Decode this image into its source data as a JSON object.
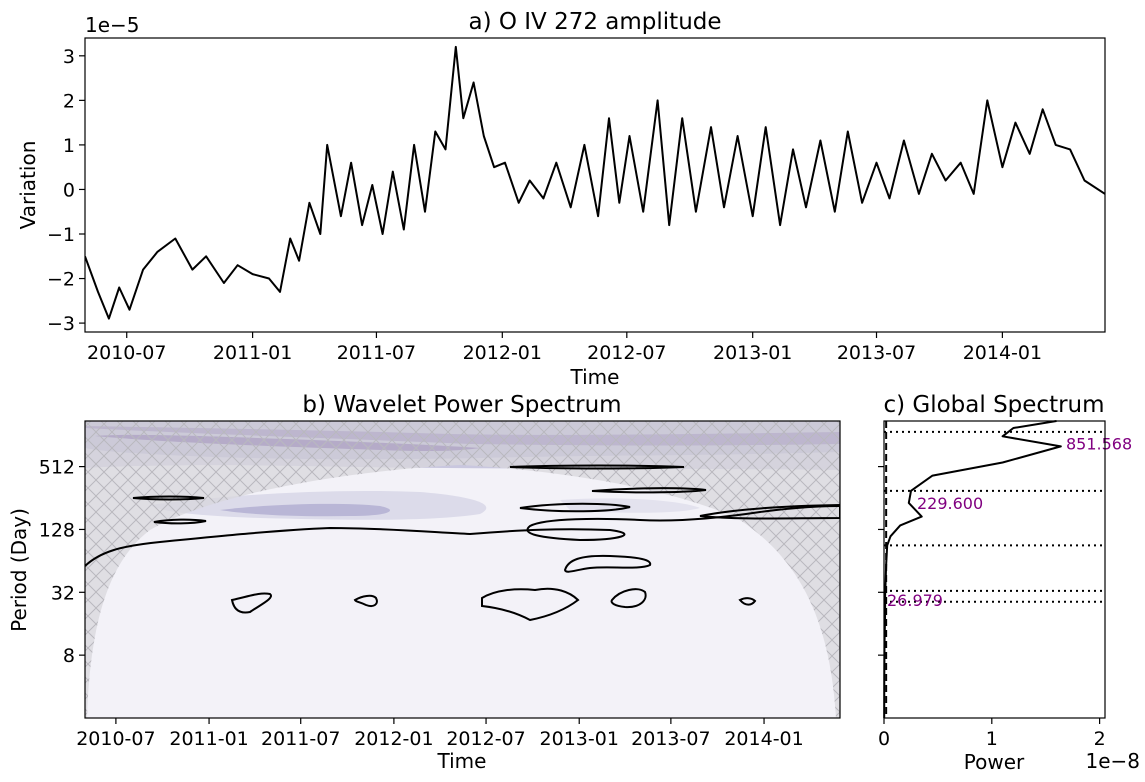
{
  "chart_data": [
    {
      "type": "line",
      "title": "a) O IV 272 amplitude",
      "xlabel": "Time",
      "ylabel": "Variation",
      "y_multiplier": "1e−5",
      "x_tick_labels": [
        "2010-07",
        "2011-01",
        "2011-07",
        "2012-01",
        "2012-07",
        "2013-01",
        "2013-07",
        "2014-01"
      ],
      "y_tick_labels": [
        "3",
        "2",
        "1",
        "0",
        "−1",
        "−2",
        "−3"
      ],
      "y_ticks": [
        3,
        2,
        1,
        0,
        -1,
        -2,
        -3
      ],
      "xlim": [
        "2010-05-01",
        "2014-05-31"
      ],
      "ylim": [
        -3.2,
        3.4
      ],
      "line_color": "#000000",
      "series": [
        {
          "x": [
            "2010-05-01",
            "2010-05-20",
            "2010-06-05",
            "2010-06-20",
            "2010-07-05",
            "2010-07-25",
            "2010-08-15",
            "2010-09-10",
            "2010-10-05",
            "2010-10-25",
            "2010-11-20",
            "2010-12-10",
            "2011-01-01",
            "2011-01-25",
            "2011-02-10",
            "2011-02-25",
            "2011-03-10",
            "2011-03-25",
            "2011-04-10",
            "2011-04-20",
            "2011-05-10",
            "2011-05-25",
            "2011-06-10",
            "2011-06-25",
            "2011-07-10",
            "2011-07-25",
            "2011-08-10",
            "2011-08-25",
            "2011-09-10",
            "2011-09-25",
            "2011-10-10",
            "2011-10-25",
            "2011-11-05",
            "2011-11-20",
            "2011-12-05",
            "2011-12-20",
            "2012-01-05",
            "2012-01-25",
            "2012-02-10",
            "2012-03-01",
            "2012-03-20",
            "2012-04-10",
            "2012-04-30",
            "2012-05-20",
            "2012-06-05",
            "2012-06-20",
            "2012-07-05",
            "2012-07-25",
            "2012-08-15",
            "2012-09-01",
            "2012-09-20",
            "2012-10-10",
            "2012-11-01",
            "2012-11-20",
            "2012-12-10",
            "2013-01-01",
            "2013-01-20",
            "2013-02-10",
            "2013-03-01",
            "2013-03-20",
            "2013-04-10",
            "2013-05-01",
            "2013-05-20",
            "2013-06-10",
            "2013-07-01",
            "2013-07-20",
            "2013-08-10",
            "2013-09-01",
            "2013-09-20",
            "2013-10-10",
            "2013-11-01",
            "2013-11-20",
            "2013-12-10",
            "2014-01-01",
            "2014-01-20",
            "2014-02-10",
            "2014-03-01",
            "2014-03-20",
            "2014-04-10",
            "2014-05-01",
            "2014-05-31"
          ],
          "values": [
            -1.5,
            -2.3,
            -2.9,
            -2.2,
            -2.7,
            -1.8,
            -1.4,
            -1.1,
            -1.8,
            -1.5,
            -2.1,
            -1.7,
            -1.9,
            -2.0,
            -2.3,
            -1.1,
            -1.6,
            -0.3,
            -1.0,
            1.0,
            -0.6,
            0.6,
            -0.8,
            0.1,
            -1.0,
            0.4,
            -0.9,
            1.0,
            -0.5,
            1.3,
            0.9,
            3.2,
            1.6,
            2.4,
            1.2,
            0.5,
            0.6,
            -0.3,
            0.2,
            -0.2,
            0.6,
            -0.4,
            1.0,
            -0.6,
            1.6,
            -0.3,
            1.2,
            -0.5,
            2.0,
            -0.8,
            1.6,
            -0.5,
            1.4,
            -0.4,
            1.2,
            -0.6,
            1.4,
            -0.8,
            0.9,
            -0.4,
            1.1,
            -0.5,
            1.3,
            -0.3,
            0.6,
            -0.2,
            1.1,
            -0.1,
            0.8,
            0.2,
            0.6,
            -0.1,
            2.0,
            0.5,
            1.5,
            0.8,
            1.8,
            1.0,
            0.9,
            0.2,
            -0.1
          ]
        }
      ]
    },
    {
      "type": "heatmap",
      "title": "b) Wavelet Power Spectrum",
      "xlabel": "Time",
      "ylabel": "Period (Day)",
      "x_tick_labels": [
        "2010-07",
        "2011-01",
        "2011-07",
        "2012-01",
        "2012-07",
        "2013-01",
        "2013-07",
        "2014-01"
      ],
      "y_tick_labels": [
        "512",
        "128",
        "32",
        "8"
      ],
      "y_ticks": [
        512,
        128,
        32,
        8
      ],
      "y_scale": "log2",
      "xlim": [
        "2010-05-01",
        "2014-05-31"
      ],
      "ylim": [
        2,
        1400
      ],
      "colormap": "purples",
      "colors": {
        "background": "#f3f2f8",
        "coi": "#d8d7dc",
        "hatch": "#b9b8be",
        "band_low": "#dcdbea",
        "band_mid": "#a8a5cb",
        "band_high": "#6b56a5",
        "band_peak": "#4b2a8a",
        "contour": "#000000"
      }
    },
    {
      "type": "line",
      "title": "c) Global Spectrum",
      "xlabel": "Power",
      "x_multiplier": "1e−8",
      "x_tick_labels": [
        "0",
        "1",
        "2"
      ],
      "x_ticks": [
        0,
        1,
        2
      ],
      "xlim": [
        0,
        2.05
      ],
      "y_scale": "log2",
      "ylim": [
        2,
        1400
      ],
      "peak_periods": [
        851.568,
        229.6,
        26.979
      ],
      "peak_labels": [
        "851.568",
        "229.600",
        "26.979"
      ],
      "dotted_periods": [
        1100,
        300,
        90,
        33,
        26
      ],
      "label_color": "#800080",
      "series": [
        {
          "power": [
            1.6,
            1.2,
            1.1,
            1.64,
            1.1,
            0.45,
            0.25,
            0.23,
            0.35,
            0.15,
            0.06,
            0.03,
            0.02,
            0.015,
            0.01,
            0.01,
            0.005,
            0.003,
            0.002
          ],
          "period": [
            1400,
            1200,
            1000,
            800,
            560,
            420,
            300,
            230,
            170,
            140,
            110,
            90,
            60,
            40,
            30,
            20,
            10,
            5,
            2
          ]
        }
      ]
    }
  ]
}
